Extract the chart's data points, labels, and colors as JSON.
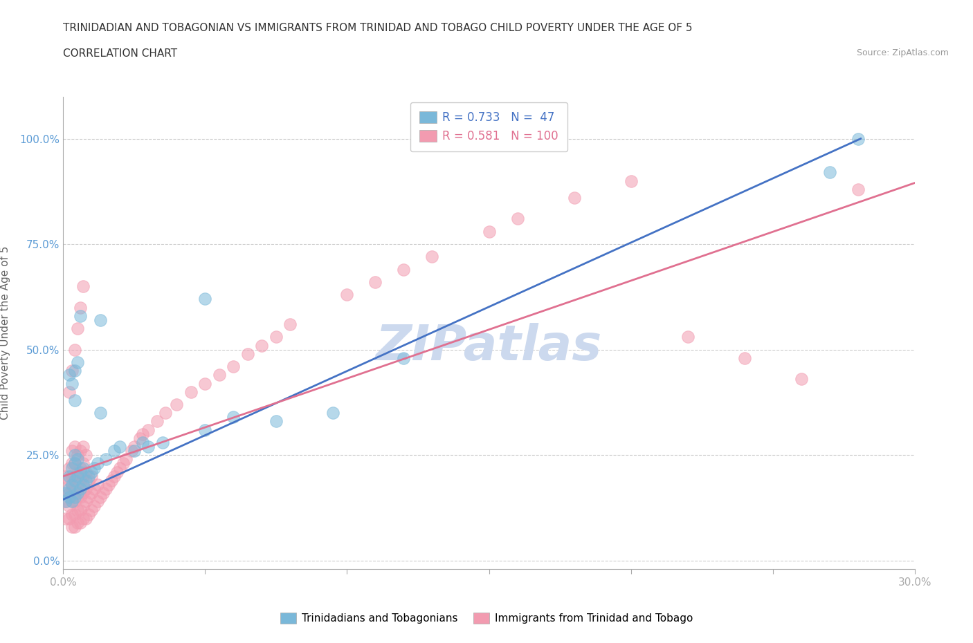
{
  "title_line1": "TRINIDADIAN AND TOBAGONIAN VS IMMIGRANTS FROM TRINIDAD AND TOBAGO CHILD POVERTY UNDER THE AGE OF 5",
  "title_line2": "CORRELATION CHART",
  "source_text": "Source: ZipAtlas.com",
  "ylabel": "Child Poverty Under the Age of 5",
  "xmin": 0.0,
  "xmax": 0.3,
  "ymin": -0.02,
  "ymax": 1.1,
  "yticks": [
    0.0,
    0.25,
    0.5,
    0.75,
    1.0
  ],
  "ytick_labels": [
    "0.0%",
    "25.0%",
    "50.0%",
    "75.0%",
    "100.0%"
  ],
  "xticks": [
    0.0,
    0.05,
    0.1,
    0.15,
    0.2,
    0.25,
    0.3
  ],
  "xtick_labels": [
    "0.0%",
    "",
    "",
    "",
    "",
    "",
    "30.0%"
  ],
  "blue_R": 0.733,
  "blue_N": 47,
  "pink_R": 0.581,
  "pink_N": 100,
  "blue_color": "#7ab8d9",
  "pink_color": "#f29bb0",
  "blue_line_color": "#4472c4",
  "pink_line_color": "#e07090",
  "watermark": "ZIPatlas",
  "watermark_color": "#ccd9ee",
  "blue_scatter_x": [
    0.001,
    0.001,
    0.002,
    0.002,
    0.002,
    0.003,
    0.003,
    0.003,
    0.004,
    0.004,
    0.004,
    0.004,
    0.005,
    0.005,
    0.005,
    0.006,
    0.006,
    0.007,
    0.007,
    0.008,
    0.009,
    0.01,
    0.011,
    0.012,
    0.013,
    0.015,
    0.018,
    0.02,
    0.025,
    0.028,
    0.03,
    0.035,
    0.05,
    0.06,
    0.075,
    0.095,
    0.12,
    0.27,
    0.28,
    0.004,
    0.003,
    0.002,
    0.004,
    0.005,
    0.006,
    0.013,
    0.05
  ],
  "blue_scatter_y": [
    0.14,
    0.16,
    0.15,
    0.17,
    0.2,
    0.14,
    0.18,
    0.22,
    0.15,
    0.19,
    0.23,
    0.25,
    0.16,
    0.2,
    0.24,
    0.17,
    0.21,
    0.18,
    0.22,
    0.19,
    0.2,
    0.21,
    0.22,
    0.23,
    0.35,
    0.24,
    0.26,
    0.27,
    0.26,
    0.28,
    0.27,
    0.28,
    0.31,
    0.34,
    0.33,
    0.35,
    0.48,
    0.92,
    1.0,
    0.38,
    0.42,
    0.44,
    0.45,
    0.47,
    0.58,
    0.57,
    0.62
  ],
  "pink_scatter_x": [
    0.001,
    0.001,
    0.001,
    0.001,
    0.002,
    0.002,
    0.002,
    0.002,
    0.002,
    0.003,
    0.003,
    0.003,
    0.003,
    0.003,
    0.003,
    0.003,
    0.004,
    0.004,
    0.004,
    0.004,
    0.004,
    0.004,
    0.004,
    0.005,
    0.005,
    0.005,
    0.005,
    0.005,
    0.005,
    0.006,
    0.006,
    0.006,
    0.006,
    0.006,
    0.006,
    0.007,
    0.007,
    0.007,
    0.007,
    0.007,
    0.007,
    0.008,
    0.008,
    0.008,
    0.008,
    0.008,
    0.009,
    0.009,
    0.009,
    0.01,
    0.01,
    0.01,
    0.011,
    0.011,
    0.012,
    0.012,
    0.013,
    0.014,
    0.015,
    0.016,
    0.017,
    0.018,
    0.019,
    0.02,
    0.021,
    0.022,
    0.024,
    0.025,
    0.027,
    0.028,
    0.03,
    0.033,
    0.036,
    0.04,
    0.045,
    0.05,
    0.055,
    0.06,
    0.065,
    0.07,
    0.075,
    0.08,
    0.1,
    0.11,
    0.12,
    0.13,
    0.15,
    0.16,
    0.18,
    0.2,
    0.22,
    0.24,
    0.26,
    0.28,
    0.002,
    0.003,
    0.004,
    0.005,
    0.006,
    0.007
  ],
  "pink_scatter_y": [
    0.1,
    0.14,
    0.17,
    0.2,
    0.1,
    0.13,
    0.16,
    0.19,
    0.22,
    0.08,
    0.11,
    0.14,
    0.17,
    0.2,
    0.23,
    0.26,
    0.08,
    0.11,
    0.14,
    0.17,
    0.2,
    0.23,
    0.27,
    0.09,
    0.12,
    0.15,
    0.18,
    0.21,
    0.25,
    0.09,
    0.12,
    0.15,
    0.19,
    0.22,
    0.26,
    0.1,
    0.13,
    0.16,
    0.2,
    0.23,
    0.27,
    0.1,
    0.14,
    0.17,
    0.21,
    0.25,
    0.11,
    0.15,
    0.19,
    0.12,
    0.16,
    0.2,
    0.13,
    0.17,
    0.14,
    0.18,
    0.15,
    0.16,
    0.17,
    0.18,
    0.19,
    0.2,
    0.21,
    0.22,
    0.23,
    0.24,
    0.26,
    0.27,
    0.29,
    0.3,
    0.31,
    0.33,
    0.35,
    0.37,
    0.4,
    0.42,
    0.44,
    0.46,
    0.49,
    0.51,
    0.53,
    0.56,
    0.63,
    0.66,
    0.69,
    0.72,
    0.78,
    0.81,
    0.86,
    0.9,
    0.53,
    0.48,
    0.43,
    0.88,
    0.4,
    0.45,
    0.5,
    0.55,
    0.6,
    0.65
  ],
  "blue_line_x": [
    0.0,
    0.281
  ],
  "blue_line_y": [
    0.145,
    1.0
  ],
  "pink_line_x": [
    0.0,
    0.3
  ],
  "pink_line_y": [
    0.2,
    0.895
  ],
  "title_fontsize": 11,
  "subtitle_fontsize": 11,
  "axis_label_fontsize": 11,
  "tick_fontsize": 11,
  "legend_fontsize": 12,
  "ylabel_color": "#666666",
  "tick_color": "#5b9bd5",
  "grid_color": "#cccccc",
  "axis_color": "#aaaaaa"
}
